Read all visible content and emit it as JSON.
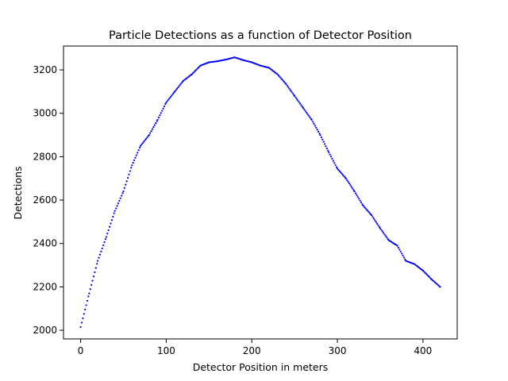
{
  "chart_data": {
    "type": "scatter",
    "title": "Particle Detections as a function of Detector Position",
    "xlabel": "Detector Position in meters",
    "ylabel": "Detections",
    "xlim": [
      -20,
      440
    ],
    "ylim": [
      1960,
      3310
    ],
    "xticks": [
      0,
      100,
      200,
      300,
      400
    ],
    "yticks": [
      2000,
      2200,
      2400,
      2600,
      2800,
      3000,
      3200
    ],
    "grid": false,
    "marker_color": "#0000ff",
    "series": [
      {
        "x": [
          0,
          10,
          20,
          30,
          40,
          50,
          60,
          70,
          80,
          90,
          100,
          110,
          120,
          130,
          140,
          150,
          160,
          170,
          180,
          190,
          200,
          210,
          220,
          230,
          240,
          250,
          260,
          270,
          280,
          290,
          300,
          310,
          320,
          330,
          340,
          350,
          360,
          370,
          380,
          390,
          400,
          410,
          420
        ],
        "y": [
          2015,
          2170,
          2320,
          2430,
          2550,
          2640,
          2760,
          2850,
          2900,
          2970,
          3050,
          3100,
          3150,
          3180,
          3220,
          3235,
          3240,
          3248,
          3258,
          3245,
          3235,
          3220,
          3210,
          3180,
          3135,
          3080,
          3025,
          2970,
          2900,
          2820,
          2745,
          2700,
          2640,
          2575,
          2530,
          2470,
          2415,
          2390,
          2320,
          2305,
          2275,
          2235,
          2200
        ]
      }
    ]
  }
}
